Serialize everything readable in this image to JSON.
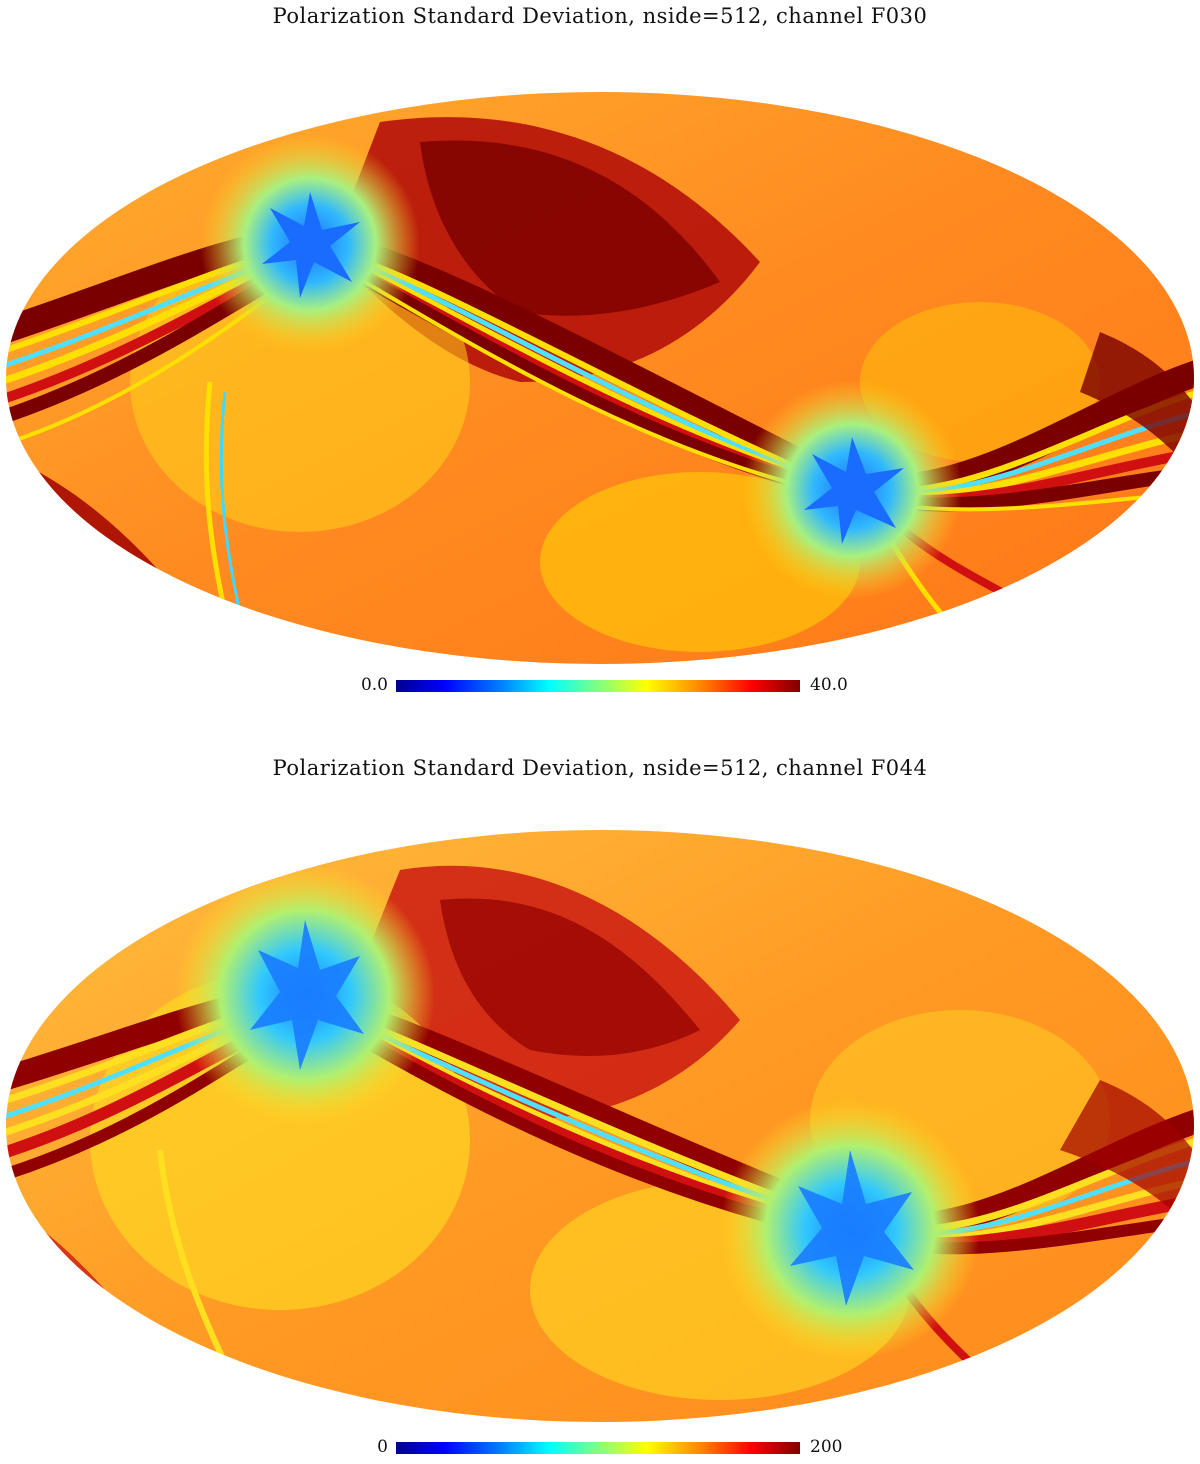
{
  "maps": [
    {
      "title": "Polarization Standard Deviation, nside=512, channel F030",
      "colorbar": {
        "min_label": "0.0",
        "max_label": "40.0",
        "colormap": "jet"
      },
      "projection": "mollweide"
    },
    {
      "title": "Polarization Standard Deviation, nside=512, channel F044",
      "colorbar": {
        "min_label": "0",
        "max_label": "200",
        "colormap": "jet"
      },
      "projection": "mollweide"
    }
  ],
  "colors": {
    "base_orange": "#ff9a1e",
    "dark_red": "#a00000",
    "red": "#e02010",
    "yellow": "#ffe000",
    "cyan": "#40d8ff",
    "blue": "#1070ff"
  }
}
